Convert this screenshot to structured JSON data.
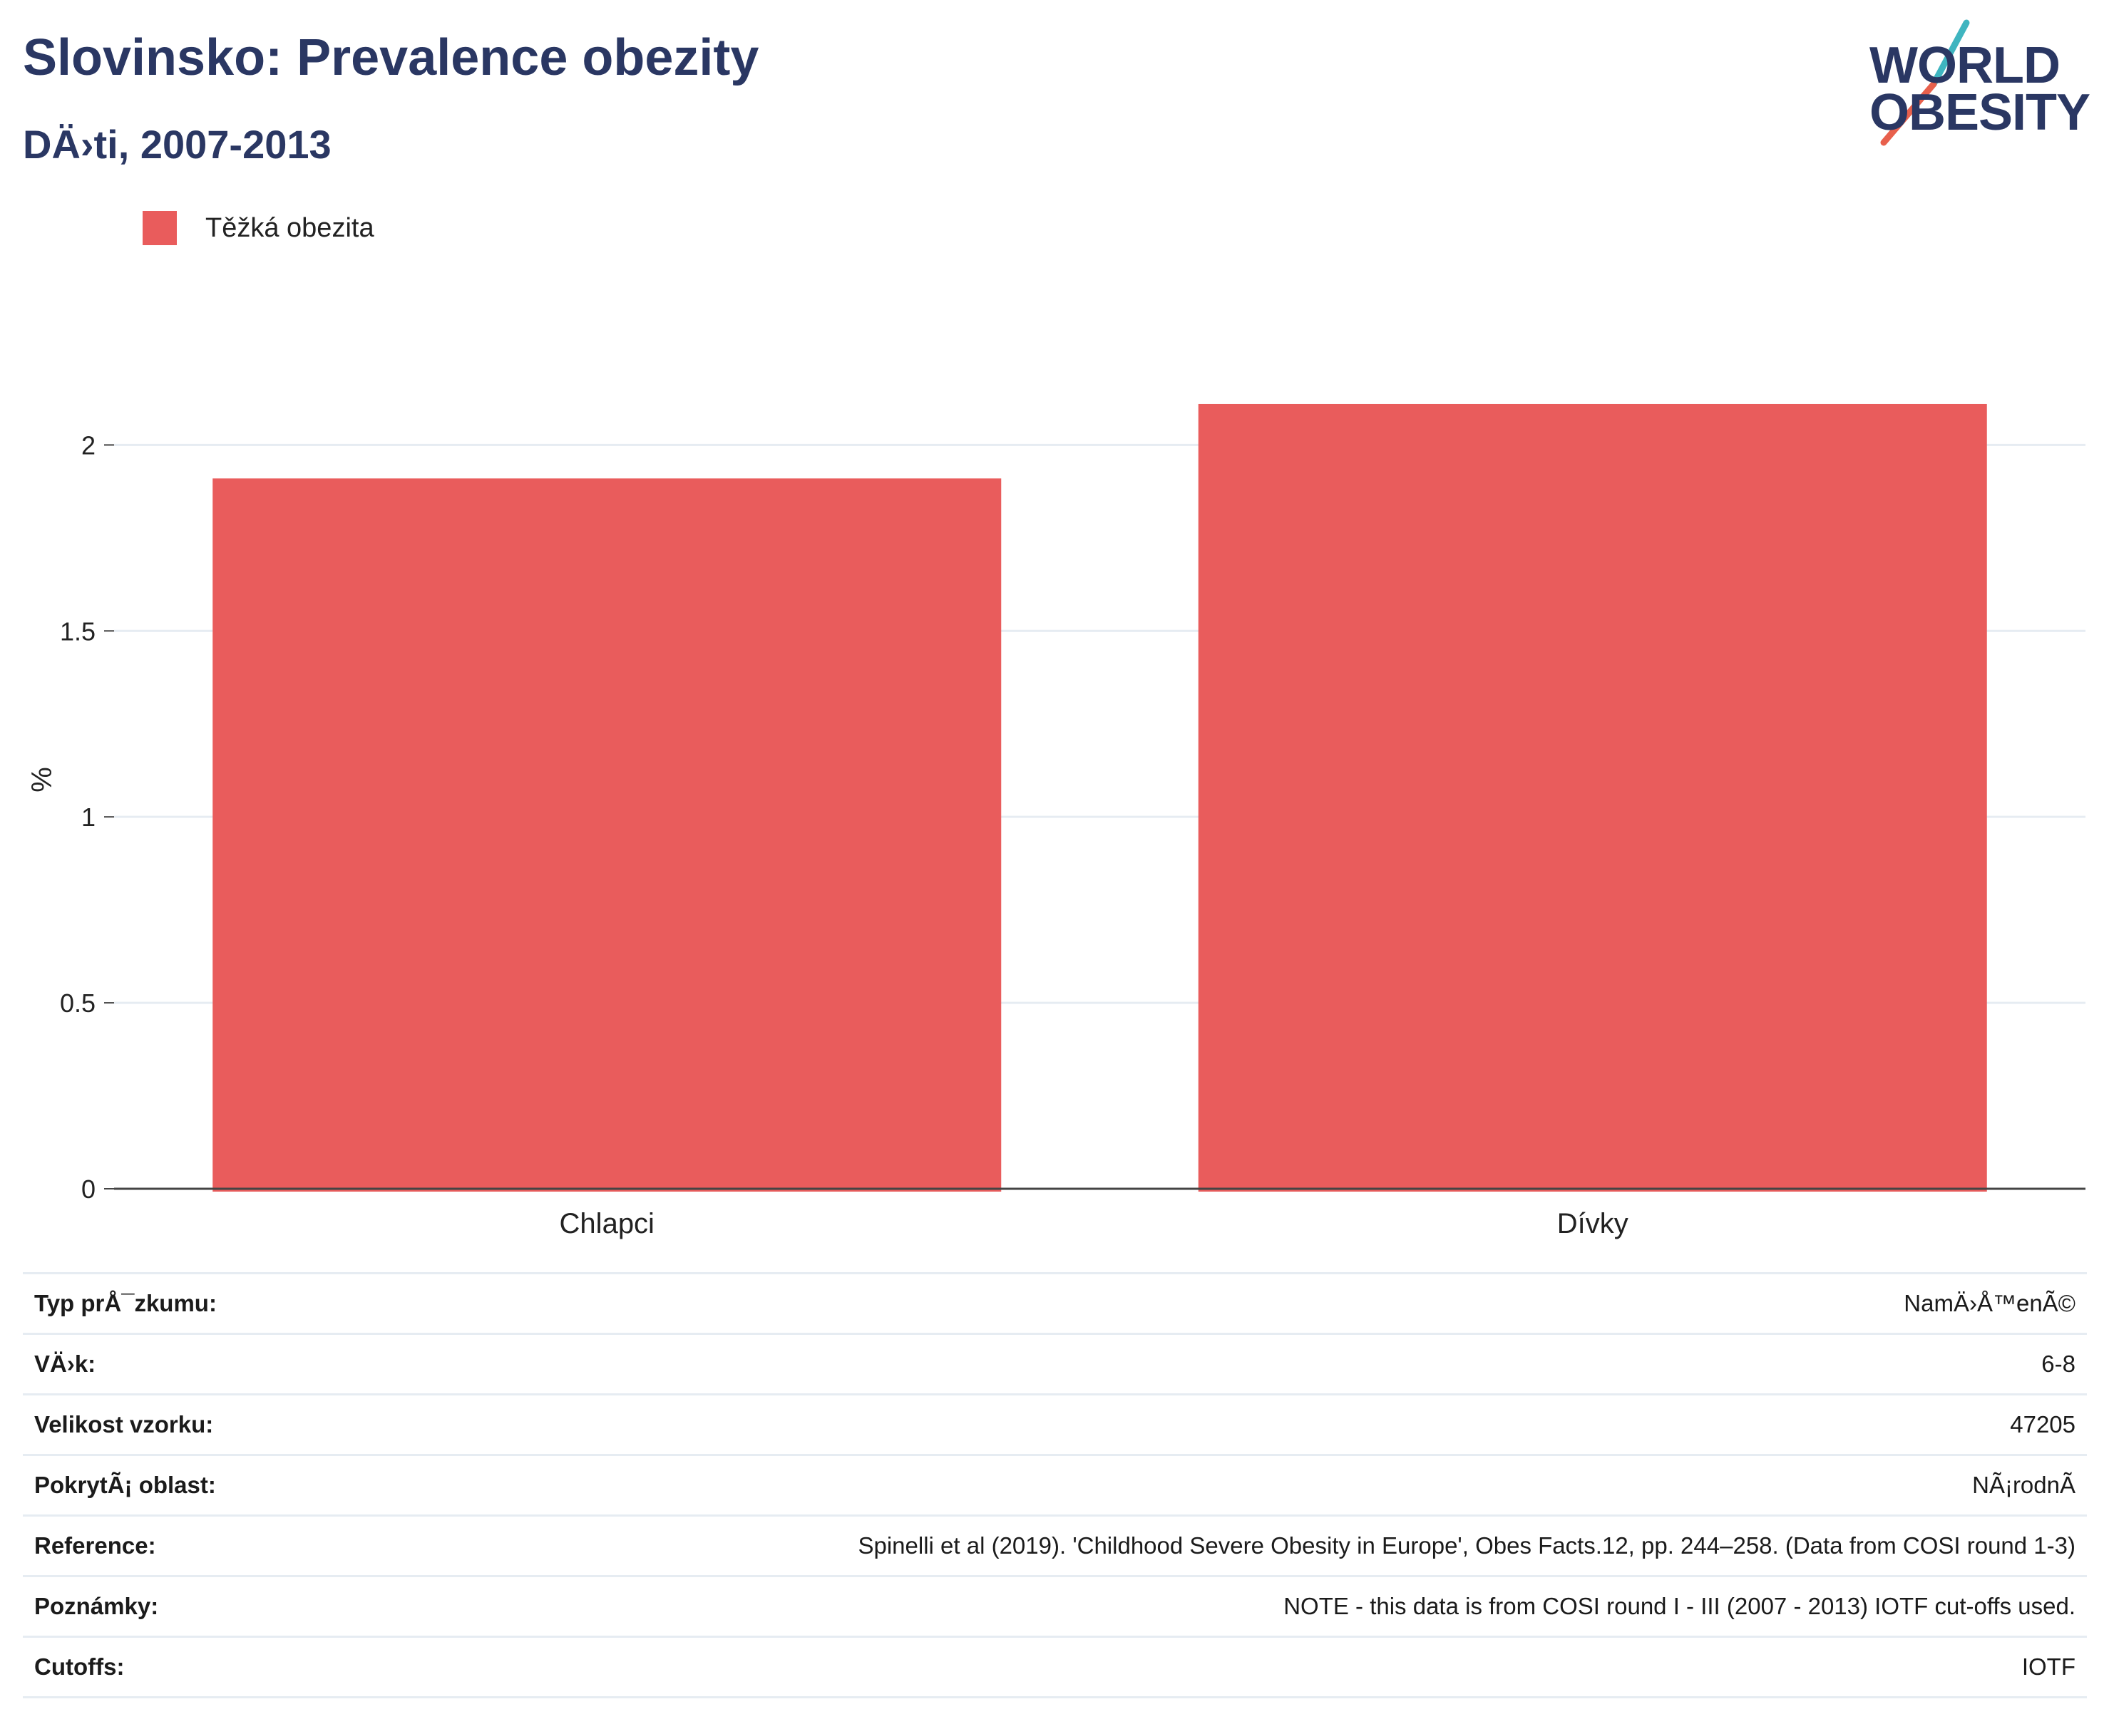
{
  "header": {
    "title": "Slovinsko: Prevalence obezity",
    "subtitle": "DÄ›ti, 2007-2013"
  },
  "logo": {
    "line1": "WORLD",
    "line2": "OBESITY",
    "colors": {
      "text": "#2a3763",
      "slash_top": "#3fb5c0",
      "slash_bottom": "#e8604c"
    }
  },
  "legend": {
    "items": [
      {
        "label": "Těžká obezita",
        "color": "#e95c5c"
      }
    ]
  },
  "chart_data": {
    "type": "bar",
    "categories": [
      "Chlapci",
      "Dívky"
    ],
    "series": [
      {
        "name": "Těžká obezita",
        "values": [
          1.91,
          2.11
        ],
        "color": "#e95c5c"
      }
    ],
    "ylabel": "%",
    "xlabel": "",
    "ylim": [
      0,
      2.2
    ],
    "yticks": [
      "0",
      "0.5",
      "1",
      "1.5",
      "2"
    ],
    "grid": true,
    "legend_position": "top-left"
  },
  "info": {
    "rows": [
      {
        "label": "Typ prÅ¯zkumu:",
        "value": "NamÄ›Å™enÃ©"
      },
      {
        "label": "VÄ›k:",
        "value": "6-8"
      },
      {
        "label": "Velikost vzorku:",
        "value": "47205"
      },
      {
        "label": "PokrytÃ¡ oblast:",
        "value": "NÃ¡rodnÃ"
      },
      {
        "label": "Reference:",
        "value": "Spinelli et al (2019). 'Childhood Severe Obesity in Europe', Obes Facts.12, pp. 244–258. (Data from COSI round 1-3)"
      },
      {
        "label": "Poznámky:",
        "value": "NOTE - this data is from COSI round I - III (2007 - 2013) IOTF cut-offs used."
      },
      {
        "label": "Cutoffs:",
        "value": "IOTF"
      }
    ]
  }
}
